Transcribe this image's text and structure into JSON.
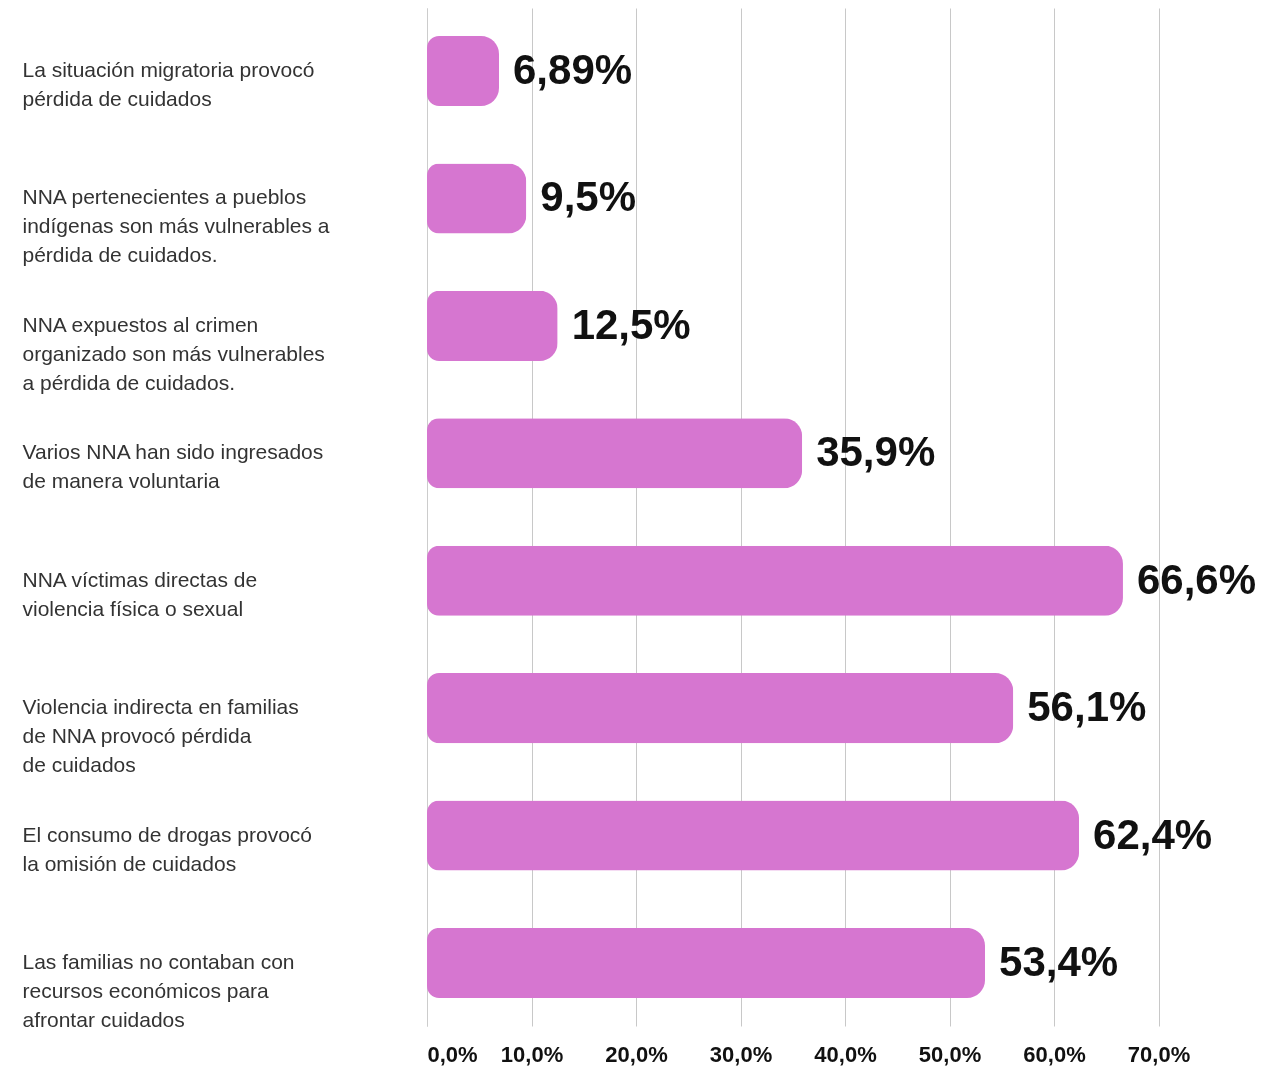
{
  "chart_data": {
    "type": "bar",
    "orientation": "horizontal",
    "categories": [
      "La situación migratoria provocó\npérdida de cuidados",
      "NNA pertenecientes a pueblos\nindígenas son más vulnerables a\npérdida de cuidados.",
      "NNA expuestos al crimen\norganizado son más vulnerables\na pérdida de cuidados.",
      "Varios NNA han sido ingresados\nde manera voluntaria",
      "NNA víctimas directas de\nviolencia física o sexual",
      "Violencia indirecta en familias\nde NNA provocó pérdida\nde cuidados",
      "El consumo de drogas provocó\nla omisión de cuidados",
      "Las familias no contaban con\nrecursos económicos para\nafrontar cuidados"
    ],
    "values": [
      6.89,
      9.5,
      12.5,
      35.9,
      66.6,
      56.1,
      62.4,
      53.4
    ],
    "value_labels": [
      "6,89%",
      "9,5%",
      "12,5%",
      "35,9%",
      "66,6%",
      "56,1%",
      "62,4%",
      "53,4%"
    ],
    "color": "#d676d0",
    "xlim": [
      0,
      80
    ],
    "xticks": [
      {
        "value": 0,
        "label": "0,0%"
      },
      {
        "value": 10,
        "label": "10,0%"
      },
      {
        "value": 20,
        "label": "20,0%"
      },
      {
        "value": 30,
        "label": "30,0%"
      },
      {
        "value": 40,
        "label": "40,0%"
      },
      {
        "value": 50,
        "label": "50,0%"
      },
      {
        "value": 60,
        "label": "60,0%"
      },
      {
        "value": 70,
        "label": "70,0%"
      }
    ],
    "grid": "x"
  }
}
